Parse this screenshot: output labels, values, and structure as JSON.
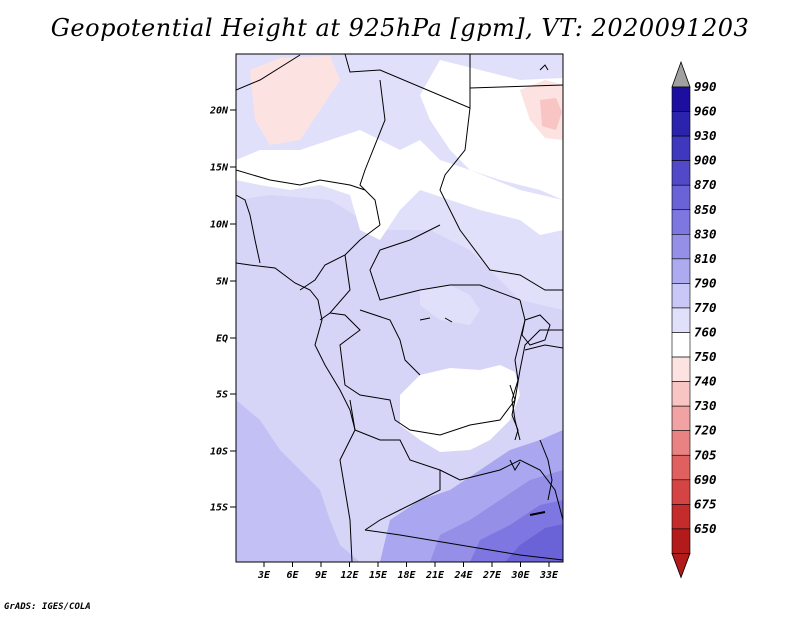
{
  "title": "Geopotential Height at 925hPa [gpm], VT: 2020091203",
  "credit": "GrADS: IGES/COLA",
  "map": {
    "lat_labels": [
      "20N",
      "15N",
      "10N",
      "5N",
      "EQ",
      "5S",
      "10S",
      "15S"
    ],
    "lon_labels": [
      "3E",
      "6E",
      "9E",
      "12E",
      "15E",
      "18E",
      "21E",
      "24E",
      "27E",
      "30E",
      "33E"
    ]
  },
  "colorbar": {
    "levels": [
      "990",
      "960",
      "930",
      "900",
      "870",
      "850",
      "830",
      "810",
      "790",
      "770",
      "760",
      "750",
      "740",
      "730",
      "720",
      "705",
      "690",
      "675",
      "650"
    ],
    "colors": [
      "#1c0fa0",
      "#2b22ad",
      "#3f37bd",
      "#5149c8",
      "#6a63d8",
      "#7e77e2",
      "#958fe8",
      "#aeaaf0",
      "#c9c7f6",
      "#e0e0fa",
      "#ffffff",
      "#fde2e2",
      "#f8c4c4",
      "#f1a2a2",
      "#e98282",
      "#e06060",
      "#d44444",
      "#c42c2c",
      "#b31b1b"
    ],
    "top_arrow_color": "#a0a0a0",
    "bottom_arrow_color": "#b31b1b"
  }
}
